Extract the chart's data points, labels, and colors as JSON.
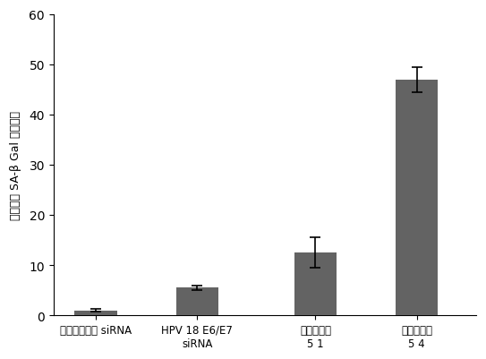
{
  "categories": [
    "コントロール siRNA",
    "HPV 18 E6/E7\nsiRNA",
    "組み合わせ\n5 1",
    "組み合わせ\n5 4"
  ],
  "values": [
    1.0,
    5.5,
    12.5,
    47.0
  ],
  "errors": [
    0.3,
    0.5,
    3.0,
    2.5
  ],
  "bar_color": "#636363",
  "bar_width": 0.5,
  "bar_positions": [
    0.5,
    1.7,
    3.1,
    4.3
  ],
  "xlim": [
    0.0,
    5.0
  ],
  "ylim": [
    0,
    60
  ],
  "yticks": [
    0,
    10,
    20,
    30,
    40,
    50,
    60
  ],
  "ylabel_parts": [
    "相対的な SA-β Gal 陽性細胞"
  ],
  "xlabel": "",
  "title": "",
  "figsize": [
    5.43,
    4.02
  ],
  "dpi": 100,
  "background_color": "#ffffff"
}
